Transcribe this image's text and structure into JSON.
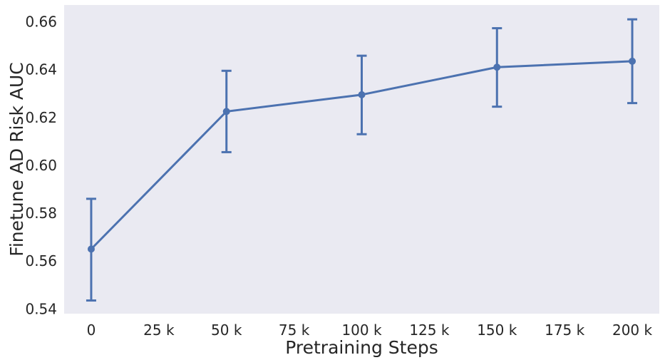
{
  "chart_data": {
    "type": "line",
    "title": "",
    "xlabel": "Pretraining Steps",
    "ylabel": "Finetune AD Risk AUC",
    "xlim": [
      -10000,
      210000
    ],
    "ylim": [
      0.538,
      0.667
    ],
    "x_ticks": [
      0,
      25000,
      50000,
      75000,
      100000,
      125000,
      150000,
      175000,
      200000
    ],
    "x_tick_labels": [
      "0",
      "25 k",
      "50 k",
      "75 k",
      "100 k",
      "125 k",
      "150 k",
      "175 k",
      "200 k"
    ],
    "y_ticks": [
      0.54,
      0.56,
      0.58,
      0.6,
      0.62,
      0.64,
      0.66
    ],
    "y_tick_labels": [
      "0.54",
      "0.56",
      "0.58",
      "0.60",
      "0.62",
      "0.64",
      "0.66"
    ],
    "grid": false,
    "series": [
      {
        "x": [
          0,
          50000,
          100000,
          150000,
          200000
        ],
        "y": [
          0.565,
          0.6225,
          0.6295,
          0.641,
          0.6435
        ],
        "y_lower": [
          0.5435,
          0.6055,
          0.613,
          0.6245,
          0.626
        ],
        "y_upper": [
          0.586,
          0.6395,
          0.6458,
          0.6573,
          0.661
        ],
        "color": "#4c72b0"
      }
    ],
    "background_color": "#eaeaf2"
  }
}
